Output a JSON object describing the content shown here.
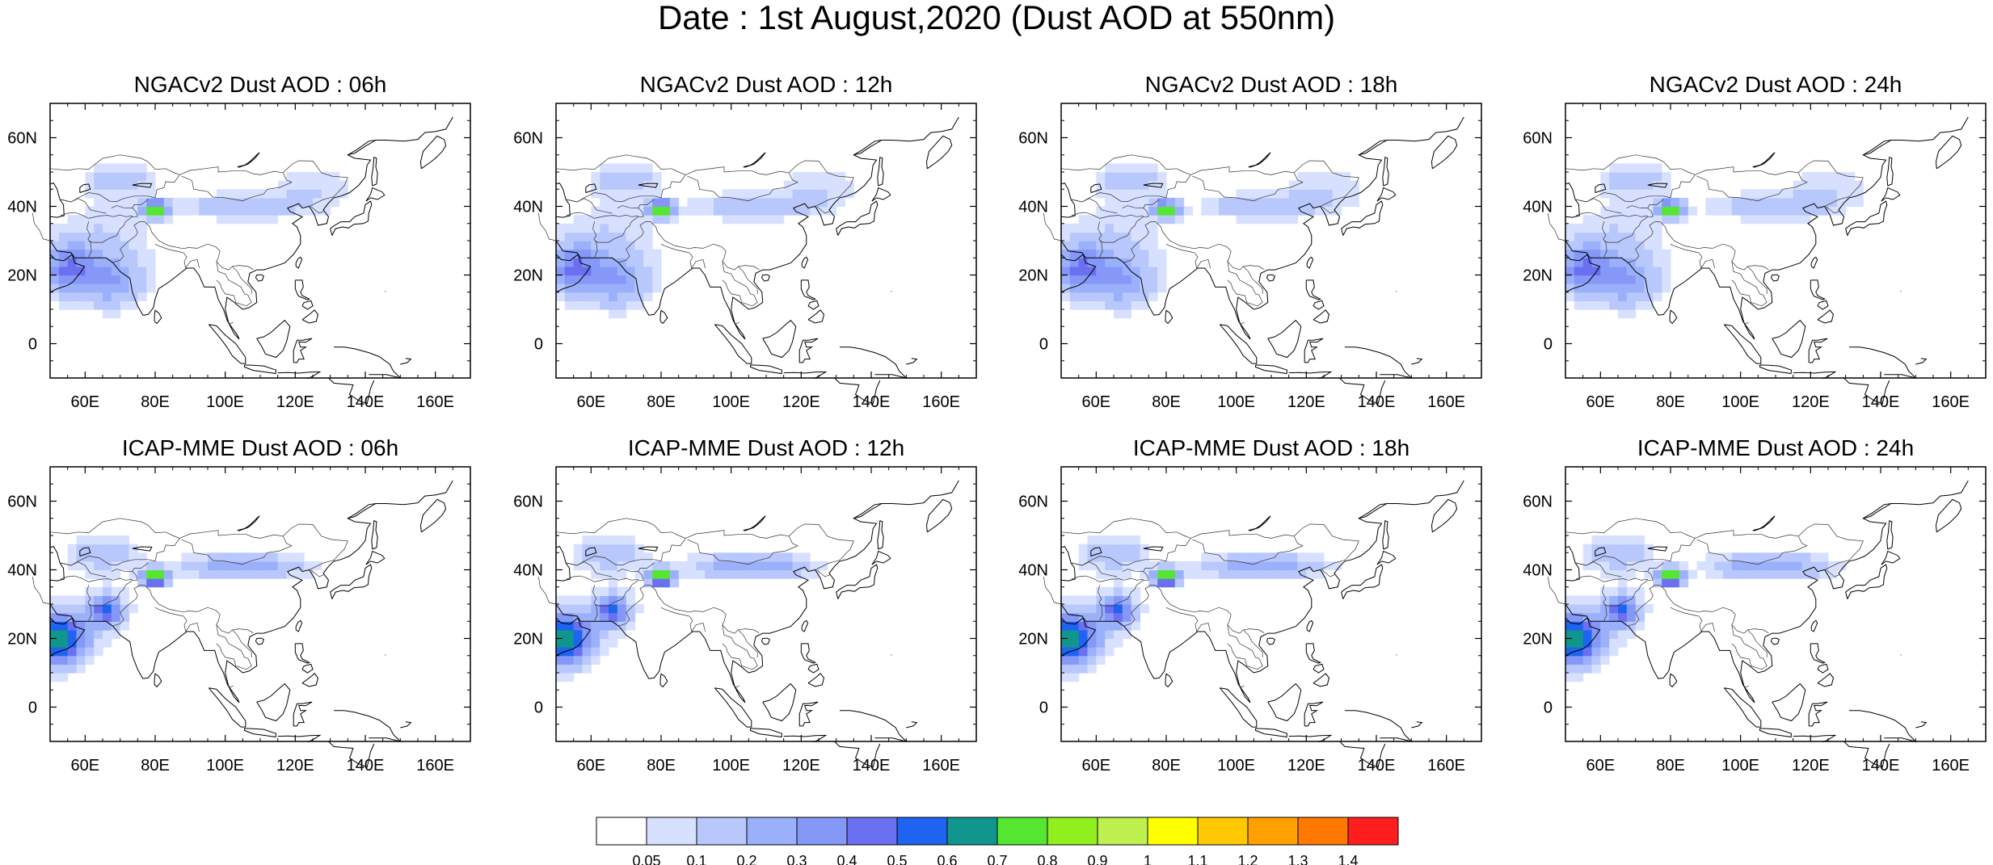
{
  "title": "Date : 1st August,2020 (Dust AOD at 550nm)",
  "chart_data": {
    "type": "heatmap",
    "variable": "Dust AOD at 550nm",
    "lon_range": [
      50,
      170
    ],
    "lat_range": [
      -10,
      70
    ],
    "x_ticks": [
      "60E",
      "80E",
      "100E",
      "120E",
      "140E",
      "160E"
    ],
    "x_tick_values": [
      60,
      80,
      100,
      120,
      140,
      160
    ],
    "y_ticks": [
      "0",
      "20N",
      "40N",
      "60N"
    ],
    "y_tick_values": [
      0,
      20,
      40,
      60
    ],
    "colorbar": {
      "labels": [
        "0.05",
        "0.1",
        "0.2",
        "0.3",
        "0.4",
        "0.5",
        "0.6",
        "0.7",
        "0.8",
        "0.9",
        "1",
        "1.1",
        "1.2",
        "1.3",
        "1.4"
      ],
      "colors": [
        "#ffffff",
        "#d7e1ff",
        "#b9c8fc",
        "#9ab0fa",
        "#8598f8",
        "#6a70f0",
        "#1e64f0",
        "#10968c",
        "#55e632",
        "#90f01e",
        "#bef050",
        "#ffff00",
        "#ffc800",
        "#ffa000",
        "#ff7800",
        "#ff1e1e"
      ],
      "placement": "bottom"
    },
    "panels": [
      {
        "title": "NGACv2 Dust AOD : 06h",
        "model": "NGACv2",
        "hour": "06h"
      },
      {
        "title": "NGACv2 Dust AOD : 12h",
        "model": "NGACv2",
        "hour": "12h"
      },
      {
        "title": "NGACv2 Dust AOD : 18h",
        "model": "NGACv2",
        "hour": "18h"
      },
      {
        "title": "NGACv2 Dust AOD : 24h",
        "model": "NGACv2",
        "hour": "24h"
      },
      {
        "title": "ICAP-MME Dust AOD : 06h",
        "model": "ICAP-MME",
        "hour": "06h"
      },
      {
        "title": "ICAP-MME Dust AOD : 12h",
        "model": "ICAP-MME",
        "hour": "12h"
      },
      {
        "title": "ICAP-MME Dust AOD : 18h",
        "model": "ICAP-MME",
        "hour": "18h"
      },
      {
        "title": "ICAP-MME Dust AOD : 24h",
        "model": "ICAP-MME",
        "hour": "24h"
      }
    ],
    "dust_features": {
      "NGACv2": [
        {
          "name": "taklimakan-hotspot",
          "lon": 80,
          "lat": 39,
          "peak_aod": 0.9
        },
        {
          "name": "arabian-peninsula",
          "lon": 55,
          "lat": 22,
          "peak_aod": 0.35
        },
        {
          "name": "thar-arabian-sea",
          "lon": 67,
          "lat": 18,
          "peak_aod": 0.25
        },
        {
          "name": "gobi-plume",
          "lon": 105,
          "lat": 40,
          "peak_aod": 0.2
        },
        {
          "name": "central-asia-north",
          "lon": 70,
          "lat": 48,
          "peak_aod": 0.15
        },
        {
          "name": "east-asia-plume",
          "lon": 125,
          "lat": 45,
          "peak_aod": 0.1
        }
      ],
      "ICAP-MME": [
        {
          "name": "taklimakan-hotspot",
          "lon": 80,
          "lat": 38,
          "peak_aod": 1.0
        },
        {
          "name": "arabian-peninsula",
          "lon": 53,
          "lat": 20,
          "peak_aod": 0.7
        },
        {
          "name": "pakistan-afghan",
          "lon": 66,
          "lat": 28,
          "peak_aod": 0.5
        },
        {
          "name": "gobi-plume",
          "lon": 105,
          "lat": 41,
          "peak_aod": 0.3
        },
        {
          "name": "central-asia-north",
          "lon": 65,
          "lat": 45,
          "peak_aod": 0.15
        }
      ]
    }
  }
}
